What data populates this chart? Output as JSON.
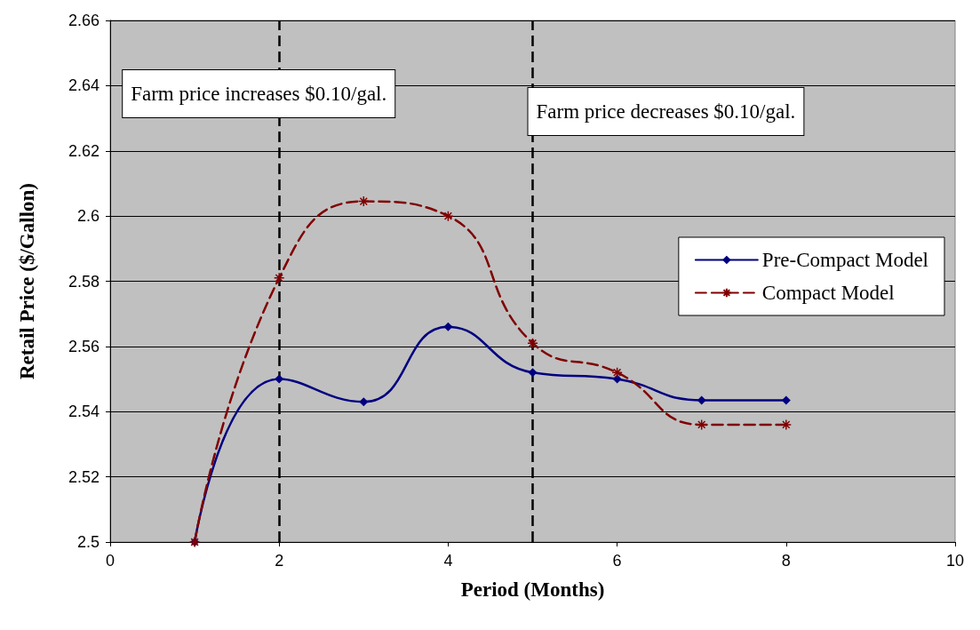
{
  "chart_data": {
    "type": "line",
    "xlabel": "Period (Months)",
    "ylabel": "Retail Price ($/Gallon)",
    "xlim": [
      0,
      10
    ],
    "xticks": [
      0,
      2,
      4,
      6,
      8,
      10
    ],
    "ylim": [
      2.5,
      2.66
    ],
    "yticks": [
      2.5,
      2.52,
      2.54,
      2.56,
      2.58,
      2.6,
      2.62,
      2.64,
      2.66
    ],
    "x": [
      1,
      2,
      3,
      4,
      5,
      6,
      7,
      8
    ],
    "series": [
      {
        "name": "Pre-Compact Model",
        "color": "#000080",
        "values": [
          2.5,
          2.55,
          2.543,
          2.566,
          2.552,
          2.55,
          2.5435,
          2.5435
        ],
        "marker": "diamond",
        "line_style": "solid"
      },
      {
        "name": "Compact Model",
        "color": "#800000",
        "values": [
          2.5,
          2.581,
          2.6045,
          2.6,
          2.561,
          2.552,
          2.536,
          2.536
        ],
        "marker": "cross",
        "line_style": "dashed"
      }
    ],
    "ref_lines": [
      {
        "axis": "x",
        "value": 2,
        "label": "Farm price increases $0.10/gal.",
        "color": "#000000",
        "line_style": "dashed"
      },
      {
        "axis": "x",
        "value": 5,
        "label": "Farm price decreases $0.10/gal.",
        "color": "#000000",
        "line_style": "dashed"
      }
    ],
    "grid": "y",
    "legend": "right"
  }
}
